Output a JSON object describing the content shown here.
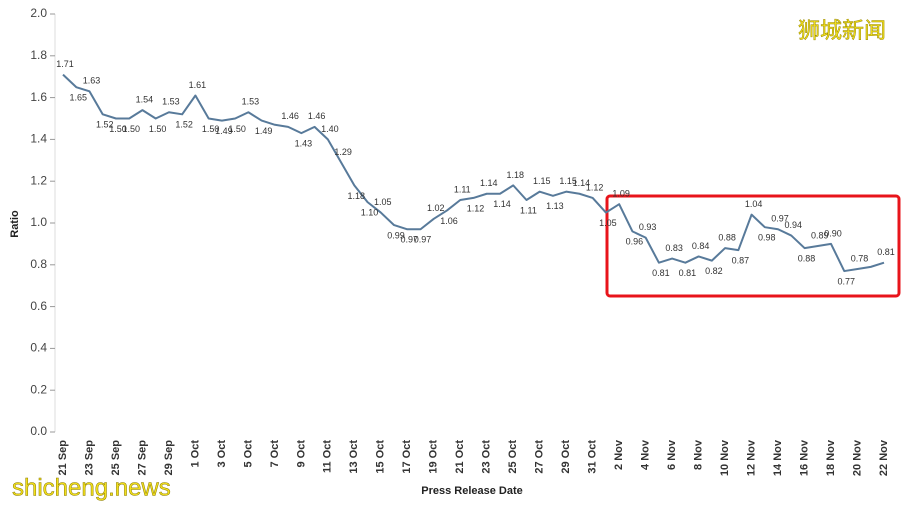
{
  "chart_data": {
    "type": "line",
    "xlabel": "Press Release Date",
    "ylabel": "Ratio",
    "watermarks": [
      "狮城新闻",
      "shicheng.news"
    ],
    "categories": [
      "21 Sep",
      null,
      "23 Sep",
      null,
      "25 Sep",
      null,
      "27 Sep",
      null,
      "29 Sep",
      null,
      "1 Oct",
      null,
      "3 Oct",
      null,
      "5 Oct",
      null,
      "7 Oct",
      null,
      "9 Oct",
      null,
      "11 Oct",
      null,
      "13 Oct",
      null,
      "15 Oct",
      null,
      "17 Oct",
      null,
      "19 Oct",
      null,
      "21 Oct",
      null,
      "23 Oct",
      null,
      "25 Oct",
      null,
      "27 Oct",
      null,
      "29 Oct",
      null,
      "31 Oct",
      null,
      "2 Nov",
      null,
      "4 Nov",
      null,
      "6 Nov",
      null,
      "8 Nov",
      null,
      "10 Nov",
      null,
      "12 Nov",
      null,
      "14 Nov",
      null,
      "16 Nov",
      null,
      "18 Nov",
      null,
      "20 Nov",
      null,
      "22 Nov"
    ],
    "series": [
      {
        "name": "Ratio",
        "color": "#587a9a",
        "values": [
          1.71,
          1.65,
          1.63,
          1.52,
          1.5,
          1.5,
          1.54,
          1.5,
          1.53,
          1.52,
          1.61,
          1.5,
          1.49,
          1.5,
          1.53,
          1.49,
          1.47,
          1.46,
          1.43,
          1.46,
          1.4,
          1.29,
          1.18,
          1.1,
          1.05,
          0.99,
          0.97,
          0.97,
          1.02,
          1.06,
          1.11,
          1.12,
          1.14,
          1.14,
          1.18,
          1.11,
          1.15,
          1.13,
          1.15,
          1.14,
          1.12,
          1.05,
          1.09,
          0.96,
          0.93,
          0.81,
          0.83,
          0.81,
          0.84,
          0.82,
          0.88,
          0.87,
          1.04,
          0.98,
          0.97,
          0.94,
          0.88,
          0.89,
          0.9,
          0.77,
          0.78,
          0.79,
          0.81
        ],
        "value_labels": [
          "1.71",
          "1.65",
          "1.63",
          "1.52",
          "1.50",
          "1.50",
          "1.54",
          "1.50",
          "1.53",
          "1.52",
          "1.61",
          "1.50",
          "1.49",
          "1.50",
          "1.53",
          "1.49",
          null,
          "1.46",
          "1.43",
          "1.46",
          "1.40",
          "1.29",
          "1.18",
          "1.10",
          "1.05",
          "0.99",
          "0.97",
          "0.97",
          "1.02",
          "1.06",
          "1.11",
          "1.12",
          "1.14",
          "1.14",
          "1.18",
          "1.11",
          "1.15",
          "1.13",
          "1.15",
          "1.14",
          "1.12",
          "1.05",
          "1.09",
          "0.96",
          "0.93",
          "0.81",
          "0.83",
          "0.81",
          "0.84",
          "0.82",
          "0.88",
          "0.87",
          "1.04",
          "0.98",
          "0.97",
          "0.94",
          "0.88",
          "0.89",
          "0.90",
          "0.77",
          "0.78",
          null,
          "0.81"
        ]
      }
    ],
    "ylim": [
      0,
      2
    ],
    "yticks": [
      {
        "value": 0,
        "label": "0.0"
      },
      0.2,
      0.4,
      0.6,
      0.8,
      {
        "value": 1,
        "label": "1.0"
      },
      1.2,
      1.4,
      1.6,
      1.8,
      {
        "value": 2,
        "label": "2.0"
      }
    ],
    "grid": false
  }
}
